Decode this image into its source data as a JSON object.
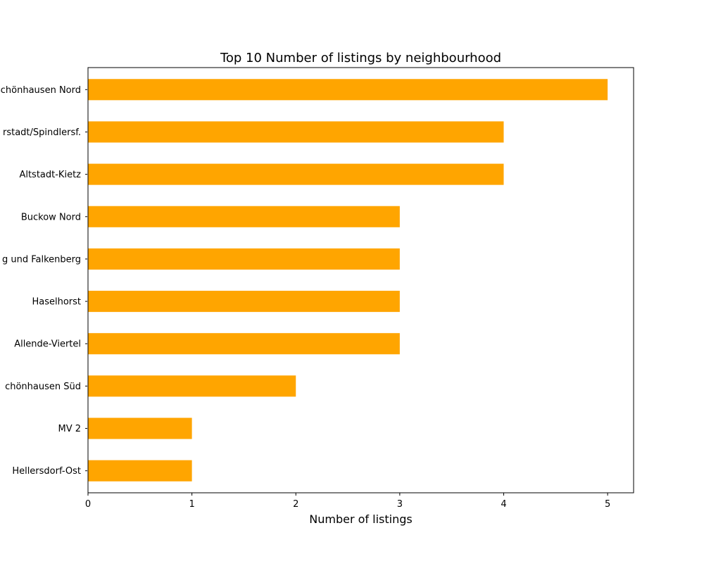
{
  "chart_data": {
    "type": "bar",
    "orientation": "horizontal",
    "title": "Top 10 Number of listings by neighbourhood",
    "xlabel": "Number of listings",
    "ylabel": "",
    "xlim": [
      0,
      5.25
    ],
    "xticks": [
      0,
      1,
      2,
      3,
      4,
      5
    ],
    "grid": false,
    "legend": "none",
    "bar_color": "#FFA500",
    "categories": [
      "Alt-Hohenschönhausen Nord",
      "Schmöckwitz/Karolinenhof/Rauchfangswerder Siedlung Spreestadt/Spindlersf.",
      "Altstadt-Kietz",
      "Buckow Nord",
      "Marzahn Süd/Hellersdorf und Falkenberg",
      "Haselhorst",
      "Allende-Viertel",
      "Alt-Hohenschönhausen Süd",
      "MV 2",
      "Hellersdorf-Ost"
    ],
    "category_labels": [
      "Alt-Hohenschönhausen Nord",
      "rstadt/Spindlersf.",
      "Altstadt-Kietz",
      "Buckow Nord",
      "g und Falkenberg",
      "Haselhorst",
      "Allende-Viertel",
      "chönhausen Süd",
      "MV 2",
      "Hellersdorf-Ost"
    ],
    "values": [
      5,
      4,
      4,
      3,
      3,
      3,
      3,
      2,
      1,
      1
    ]
  }
}
